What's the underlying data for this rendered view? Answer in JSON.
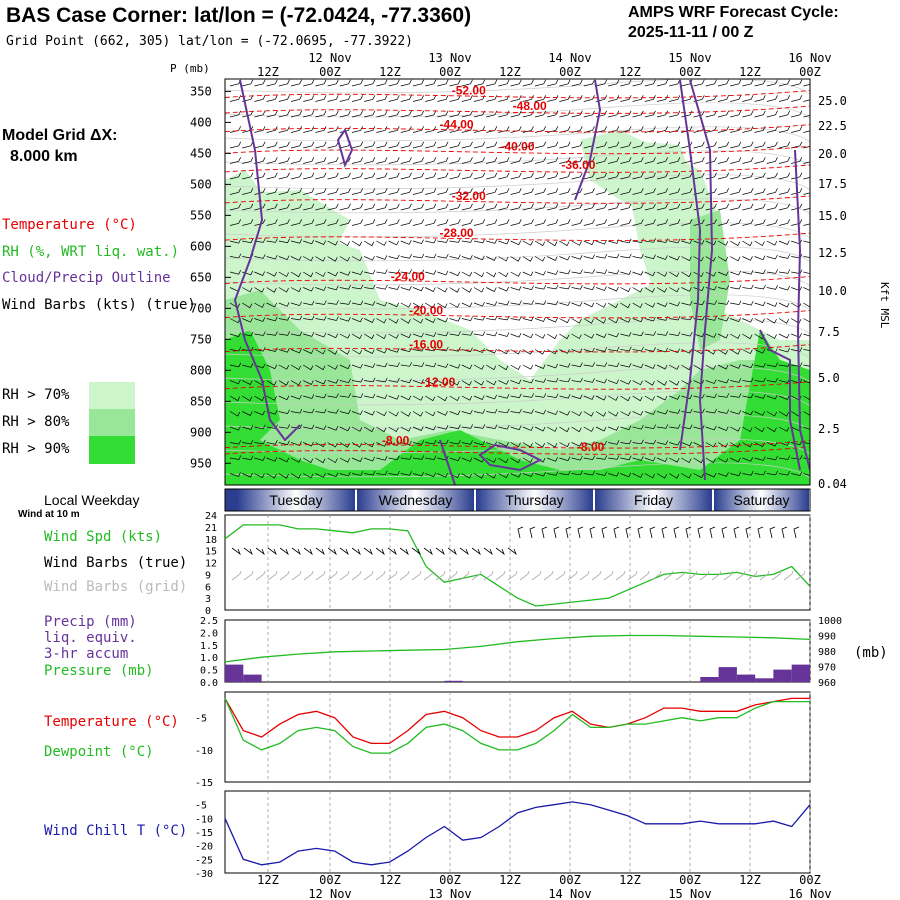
{
  "header": {
    "title": "BAS Case Corner:  lat/lon = (-72.0424, -77.3360)",
    "grid_point": "Grid Point (662, 305) lat/lon = (-72.0695, -77.3922)",
    "cycle_line1": "AMPS WRF Forecast Cycle:",
    "cycle_line2": "2025-11-11 / 00  Z"
  },
  "legend": {
    "model_grid_line1": "Model Grid ΔX:",
    "model_grid_line2": "8.000 km",
    "temperature": "Temperature (°C)",
    "rh": "RH (%, WRT liq. wat.)",
    "cloud": "Cloud/Precip Outline",
    "wind": "Wind Barbs (kts) (true)",
    "rh70": "RH > 70%",
    "rh80": "RH > 80%",
    "rh90": "RH > 90%"
  },
  "colors": {
    "rh70": "#ccf5cc",
    "rh80": "#99e699",
    "rh90": "#33dd33",
    "temperature": "#e60000",
    "cloud": "#663399",
    "wind_speed": "#22bb22",
    "pressure": "#22bb22",
    "precip": "#663399",
    "dewpoint": "#22bb22",
    "windchill": "#1a1aaa"
  },
  "time_axis": {
    "top_ticks": [
      "12Z",
      "00Z",
      "12Z",
      "00Z",
      "12Z",
      "00Z",
      "12Z",
      "00Z",
      "12Z",
      "00Z"
    ],
    "date_labels": [
      "12 Nov",
      "13 Nov",
      "14 Nov",
      "15 Nov",
      "16 Nov"
    ],
    "weekdays": [
      "Tuesday",
      "Wednesday",
      "Thursday",
      "Friday",
      "Saturday"
    ],
    "weekday_label": "Local Weekday"
  },
  "panel_labels": {
    "p_axis": "P (mb)",
    "height_axis": "Kft MSL",
    "wind_at": "Wind at 10 m",
    "wind_spd": "Wind Spd (kts)",
    "barbs_true": "Wind Barbs (true)",
    "barbs_grid": "Wind Barbs (grid)",
    "precip1": "Precip (mm)",
    "precip2": "liq. equiv.",
    "precip3": "3-hr accum",
    "pressure": "Pressure (mb)",
    "mb_unit": "(mb)",
    "temperature": "Temperature (°C)",
    "dewpoint": "Dewpoint (°C)",
    "windchill": "Wind Chill T (°C)"
  },
  "chart_data": [
    {
      "type": "cross-section",
      "pressure_ticks": [
        "350",
        "400",
        "450",
        "500",
        "550",
        "600",
        "650",
        "700",
        "750",
        "800",
        "850",
        "900",
        "950"
      ],
      "height_ticks": [
        "25.0",
        "22.5",
        "20.0",
        "17.5",
        "15.0",
        "12.5",
        "10.0",
        "7.5",
        "5.0",
        "2.5",
        "0.04"
      ],
      "temperature_labels": [
        {
          "text": "-52.00",
          "hour": 40,
          "p": 355
        },
        {
          "text": "-48.00",
          "hour": 50,
          "p": 380
        },
        {
          "text": "-44.00",
          "hour": 38,
          "p": 410
        },
        {
          "text": "-40.00",
          "hour": 48,
          "p": 445
        },
        {
          "text": "-36.00",
          "hour": 58,
          "p": 475
        },
        {
          "text": "-32.00",
          "hour": 40,
          "p": 525
        },
        {
          "text": "-28.00",
          "hour": 38,
          "p": 585
        },
        {
          "text": "-24.00",
          "hour": 30,
          "p": 655
        },
        {
          "text": "-20.00",
          "hour": 33,
          "p": 710
        },
        {
          "text": "-16.00",
          "hour": 33,
          "p": 765
        },
        {
          "text": "-12.00",
          "hour": 35,
          "p": 825
        },
        {
          "text": "-8.00",
          "hour": 28,
          "p": 920
        },
        {
          "text": "-8.00",
          "hour": 60,
          "p": 930
        }
      ]
    },
    {
      "type": "line",
      "title": "Wind Spd (kts)",
      "ylim": [
        0,
        24
      ],
      "y_ticks": [
        "24",
        "21",
        "18",
        "15",
        "12",
        "9",
        "6",
        "3",
        "0"
      ],
      "x_hours": [
        0,
        3,
        6,
        9,
        12,
        15,
        18,
        21,
        24,
        27,
        30,
        33,
        36,
        39,
        42,
        45,
        48,
        51,
        54,
        57,
        60,
        63,
        66,
        69,
        72,
        75,
        78,
        81,
        84,
        87,
        90,
        93,
        96
      ],
      "values": [
        18,
        21.5,
        21.5,
        21.5,
        20.5,
        20.5,
        20,
        19.5,
        20.5,
        20.5,
        20,
        11,
        7,
        8,
        9,
        6,
        3,
        1,
        1.5,
        2,
        2.5,
        3,
        5,
        7,
        9,
        9.5,
        9,
        9,
        9.5,
        8.5,
        9,
        11,
        6
      ]
    },
    {
      "type": "line+bar",
      "title": "Precip / Pressure",
      "precip_ylim": [
        0,
        2.5
      ],
      "precip_ticks": [
        "2.5",
        "2.0",
        "1.5",
        "1.0",
        "0.5",
        "0.0"
      ],
      "pressure_ylim": [
        960,
        1000
      ],
      "pressure_ticks": [
        "1000",
        "990",
        "980",
        "970",
        "960"
      ],
      "x_hours": [
        0,
        6,
        12,
        18,
        24,
        30,
        36,
        42,
        48,
        54,
        60,
        66,
        72,
        78,
        84,
        90,
        96
      ],
      "pressure": [
        973,
        976,
        978,
        979.5,
        980,
        980.5,
        981,
        983,
        986,
        988,
        989.5,
        990,
        990,
        989.5,
        989,
        988.5,
        987.5
      ],
      "precip_hours": [
        1.5,
        4.5,
        37.5,
        79.5,
        82.5,
        85.5,
        88.5,
        91.5,
        94.5
      ],
      "precip_values": [
        0.7,
        0.3,
        0.05,
        0.2,
        0.6,
        0.3,
        0.15,
        0.5,
        0.7
      ]
    },
    {
      "type": "line",
      "title": "Temperature / Dewpoint",
      "ylim": [
        -15,
        -1
      ],
      "y_ticks": [
        "-5",
        "-10",
        "-15"
      ],
      "x_hours": [
        0,
        3,
        6,
        9,
        12,
        15,
        18,
        21,
        24,
        27,
        30,
        33,
        36,
        39,
        42,
        45,
        48,
        51,
        54,
        57,
        60,
        63,
        66,
        69,
        72,
        75,
        78,
        81,
        84,
        87,
        90,
        93,
        96
      ],
      "temperature": [
        -2,
        -7,
        -8,
        -6,
        -4.5,
        -4,
        -5,
        -8,
        -9,
        -9,
        -7,
        -4.5,
        -4,
        -5,
        -7,
        -8,
        -8,
        -7,
        -5,
        -4,
        -6,
        -6.5,
        -6,
        -5,
        -3.5,
        -3.5,
        -4,
        -4,
        -4,
        -3,
        -2.5,
        -2,
        -2
      ],
      "dewpoint": [
        -2,
        -8.5,
        -10,
        -9,
        -7,
        -6.5,
        -7,
        -9.5,
        -10.5,
        -10.5,
        -9,
        -6.5,
        -6,
        -7,
        -9,
        -10,
        -10,
        -9,
        -7,
        -4.5,
        -6.5,
        -6.5,
        -6,
        -6,
        -5.5,
        -5,
        -5.5,
        -5,
        -5,
        -3.5,
        -2.5,
        -2.5,
        -2.5
      ]
    },
    {
      "type": "line",
      "title": "Wind Chill T (°C)",
      "ylim": [
        -30,
        0
      ],
      "y_ticks": [
        "-5",
        "-10",
        "-15",
        "-20",
        "-25",
        "-30"
      ],
      "x_hours": [
        0,
        3,
        6,
        9,
        12,
        15,
        18,
        21,
        24,
        27,
        30,
        33,
        36,
        39,
        42,
        45,
        48,
        51,
        54,
        57,
        60,
        63,
        66,
        69,
        72,
        75,
        78,
        81,
        84,
        87,
        90,
        93,
        96
      ],
      "values": [
        -10,
        -25,
        -27,
        -26,
        -22,
        -21,
        -22,
        -26,
        -27,
        -26,
        -22,
        -17,
        -13,
        -18,
        -17,
        -13,
        -8,
        -6,
        -5,
        -4,
        -5,
        -7,
        -9,
        -12,
        -12,
        -12,
        -11,
        -12,
        -12,
        -12,
        -11,
        -13,
        -5
      ]
    }
  ]
}
